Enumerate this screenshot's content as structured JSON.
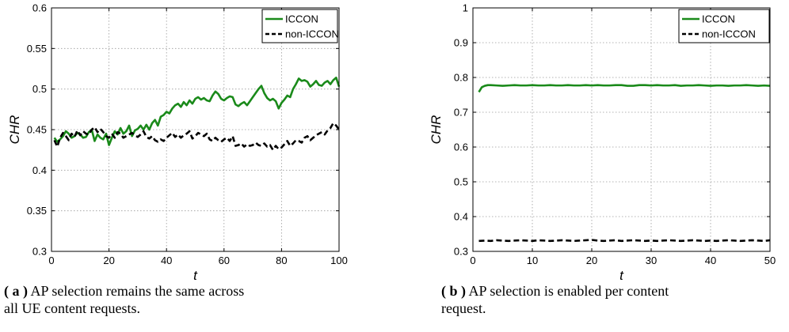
{
  "chart_data": [
    {
      "type": "line",
      "panel": "a",
      "xlabel": "t",
      "ylabel": "CHR",
      "xlim": [
        0,
        100
      ],
      "ylim": [
        0.3,
        0.6
      ],
      "xticks": [
        0,
        20,
        40,
        60,
        80,
        100
      ],
      "yticks": [
        0.3,
        0.35,
        0.4,
        0.45,
        0.5,
        0.55,
        0.6
      ],
      "ytick_labels": [
        "0.3",
        "0.35",
        "0.4",
        "0.45",
        "0.5",
        "0.55",
        "0.6"
      ],
      "grid": true,
      "legend_position": "top-right",
      "series": [
        {
          "name": "ICCON",
          "color": "#1a8a1a",
          "style": "solid",
          "x": [
            1,
            2,
            3,
            4,
            5,
            6,
            7,
            8,
            9,
            10,
            11,
            12,
            13,
            14,
            15,
            16,
            17,
            18,
            19,
            20,
            21,
            22,
            23,
            24,
            25,
            26,
            27,
            28,
            29,
            30,
            31,
            32,
            33,
            34,
            35,
            36,
            37,
            38,
            39,
            40,
            41,
            42,
            43,
            44,
            45,
            46,
            47,
            48,
            49,
            50,
            51,
            52,
            53,
            54,
            55,
            56,
            57,
            58,
            59,
            60,
            61,
            62,
            63,
            64,
            65,
            66,
            67,
            68,
            69,
            70,
            71,
            72,
            73,
            74,
            75,
            76,
            77,
            78,
            79,
            80,
            81,
            82,
            83,
            84,
            85,
            86,
            87,
            88,
            89,
            90,
            91,
            92,
            93,
            94,
            95,
            96,
            97,
            98,
            99,
            100
          ],
          "values": [
            0.44,
            0.435,
            0.438,
            0.442,
            0.448,
            0.445,
            0.44,
            0.442,
            0.446,
            0.444,
            0.44,
            0.441,
            0.447,
            0.45,
            0.436,
            0.444,
            0.44,
            0.438,
            0.445,
            0.431,
            0.44,
            0.448,
            0.444,
            0.452,
            0.445,
            0.448,
            0.455,
            0.442,
            0.449,
            0.451,
            0.455,
            0.45,
            0.456,
            0.45,
            0.458,
            0.462,
            0.455,
            0.466,
            0.468,
            0.472,
            0.47,
            0.476,
            0.48,
            0.482,
            0.478,
            0.484,
            0.48,
            0.486,
            0.482,
            0.488,
            0.49,
            0.487,
            0.489,
            0.486,
            0.485,
            0.492,
            0.497,
            0.494,
            0.488,
            0.486,
            0.489,
            0.491,
            0.49,
            0.481,
            0.479,
            0.482,
            0.484,
            0.48,
            0.485,
            0.49,
            0.495,
            0.5,
            0.504,
            0.495,
            0.489,
            0.486,
            0.488,
            0.485,
            0.476,
            0.483,
            0.487,
            0.492,
            0.49,
            0.5,
            0.506,
            0.513,
            0.51,
            0.511,
            0.509,
            0.503,
            0.506,
            0.51,
            0.505,
            0.504,
            0.508,
            0.51,
            0.506,
            0.511,
            0.514,
            0.503
          ]
        },
        {
          "name": "non-ICCON",
          "color": "#000000",
          "style": "dashed",
          "x": [
            1,
            2,
            3,
            4,
            5,
            6,
            7,
            8,
            9,
            10,
            11,
            12,
            13,
            14,
            15,
            16,
            17,
            18,
            19,
            20,
            21,
            22,
            23,
            24,
            25,
            26,
            27,
            28,
            29,
            30,
            31,
            32,
            33,
            34,
            35,
            36,
            37,
            38,
            39,
            40,
            41,
            42,
            43,
            44,
            45,
            46,
            47,
            48,
            49,
            50,
            51,
            52,
            53,
            54,
            55,
            56,
            57,
            58,
            59,
            60,
            61,
            62,
            63,
            64,
            65,
            66,
            67,
            68,
            69,
            70,
            71,
            72,
            73,
            74,
            75,
            76,
            77,
            78,
            79,
            80,
            81,
            82,
            83,
            84,
            85,
            86,
            87,
            88,
            89,
            90,
            91,
            92,
            93,
            94,
            95,
            96,
            97,
            98,
            99,
            100
          ],
          "values": [
            0.437,
            0.429,
            0.44,
            0.446,
            0.442,
            0.437,
            0.445,
            0.441,
            0.449,
            0.443,
            0.448,
            0.445,
            0.444,
            0.45,
            0.453,
            0.447,
            0.451,
            0.447,
            0.442,
            0.44,
            0.445,
            0.44,
            0.447,
            0.445,
            0.44,
            0.442,
            0.444,
            0.446,
            0.443,
            0.441,
            0.444,
            0.448,
            0.441,
            0.439,
            0.442,
            0.437,
            0.435,
            0.438,
            0.436,
            0.44,
            0.443,
            0.446,
            0.441,
            0.444,
            0.44,
            0.443,
            0.445,
            0.448,
            0.439,
            0.442,
            0.446,
            0.444,
            0.442,
            0.445,
            0.438,
            0.436,
            0.44,
            0.437,
            0.435,
            0.438,
            0.44,
            0.436,
            0.442,
            0.43,
            0.431,
            0.433,
            0.429,
            0.432,
            0.43,
            0.431,
            0.434,
            0.431,
            0.43,
            0.433,
            0.429,
            0.431,
            0.425,
            0.43,
            0.426,
            0.428,
            0.432,
            0.436,
            0.43,
            0.433,
            0.437,
            0.436,
            0.434,
            0.44,
            0.442,
            0.437,
            0.44,
            0.443,
            0.445,
            0.447,
            0.444,
            0.449,
            0.452,
            0.458,
            0.455,
            0.45
          ]
        }
      ]
    },
    {
      "type": "line",
      "panel": "b",
      "xlabel": "t",
      "ylabel": "CHR",
      "xlim": [
        0,
        50
      ],
      "ylim": [
        0.3,
        1.0
      ],
      "xticks": [
        0,
        10,
        20,
        30,
        40,
        50
      ],
      "yticks": [
        0.3,
        0.4,
        0.5,
        0.6,
        0.7,
        0.8,
        0.9,
        1.0
      ],
      "ytick_labels": [
        "0.3",
        "0.4",
        "0.5",
        "0.6",
        "0.7",
        "0.8",
        "0.9",
        "1"
      ],
      "grid": true,
      "legend_position": "top-right",
      "series": [
        {
          "name": "ICCON",
          "color": "#1a8a1a",
          "style": "solid",
          "x": [
            1,
            1.5,
            2,
            2.5,
            3,
            4,
            5,
            6,
            7,
            8,
            9,
            10,
            11,
            12,
            13,
            14,
            15,
            16,
            17,
            18,
            19,
            20,
            21,
            22,
            23,
            24,
            25,
            26,
            27,
            28,
            29,
            30,
            31,
            32,
            33,
            34,
            35,
            36,
            37,
            38,
            39,
            40,
            41,
            42,
            43,
            44,
            45,
            46,
            47,
            48,
            49,
            50
          ],
          "values": [
            0.758,
            0.772,
            0.776,
            0.778,
            0.778,
            0.777,
            0.776,
            0.777,
            0.778,
            0.777,
            0.777,
            0.778,
            0.777,
            0.777,
            0.778,
            0.777,
            0.777,
            0.778,
            0.777,
            0.777,
            0.778,
            0.777,
            0.778,
            0.777,
            0.777,
            0.778,
            0.778,
            0.776,
            0.776,
            0.778,
            0.778,
            0.777,
            0.778,
            0.777,
            0.777,
            0.778,
            0.776,
            0.777,
            0.777,
            0.778,
            0.777,
            0.776,
            0.777,
            0.777,
            0.776,
            0.777,
            0.777,
            0.778,
            0.777,
            0.776,
            0.777,
            0.776
          ]
        },
        {
          "name": "non-ICCON",
          "color": "#000000",
          "style": "dashed",
          "x": [
            1,
            2,
            3,
            4,
            5,
            6,
            7,
            8,
            9,
            10,
            11,
            12,
            13,
            14,
            15,
            16,
            17,
            18,
            19,
            20,
            21,
            22,
            23,
            24,
            25,
            26,
            27,
            28,
            29,
            30,
            31,
            32,
            33,
            34,
            35,
            36,
            37,
            38,
            39,
            40,
            41,
            42,
            43,
            44,
            45,
            46,
            47,
            48,
            49,
            50
          ],
          "values": [
            0.33,
            0.331,
            0.33,
            0.332,
            0.331,
            0.33,
            0.331,
            0.332,
            0.331,
            0.33,
            0.332,
            0.331,
            0.33,
            0.331,
            0.332,
            0.331,
            0.33,
            0.331,
            0.332,
            0.333,
            0.331,
            0.33,
            0.331,
            0.332,
            0.33,
            0.331,
            0.332,
            0.331,
            0.33,
            0.331,
            0.33,
            0.331,
            0.332,
            0.331,
            0.33,
            0.331,
            0.332,
            0.331,
            0.33,
            0.331,
            0.33,
            0.331,
            0.332,
            0.331,
            0.33,
            0.331,
            0.332,
            0.331,
            0.33,
            0.332
          ]
        }
      ]
    }
  ],
  "captions": {
    "a": {
      "label": "( a )",
      "line1": "AP selection remains the same across",
      "line2": "all UE content requests."
    },
    "b": {
      "label": "( b )",
      "line1": "AP selection is enabled per content",
      "line2": "request."
    }
  }
}
